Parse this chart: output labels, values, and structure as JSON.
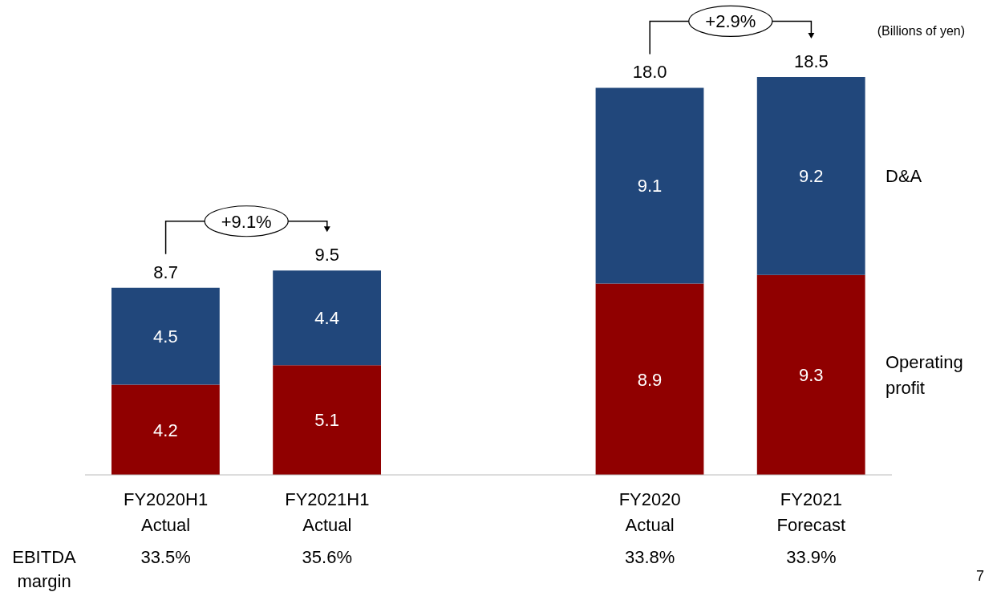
{
  "chart_data": {
    "type": "bar",
    "stacked": true,
    "data_labels": true,
    "categories": [
      "FY2020H1\nActual",
      "FY2021H1\nActual",
      null,
      "FY2020\nActual",
      "FY2021\nForecast"
    ],
    "series": [
      {
        "name": "Operating profit",
        "color": "#900000",
        "values": [
          4.2,
          5.1,
          null,
          8.9,
          9.3
        ]
      },
      {
        "name": "D&A",
        "color": "#21477b",
        "values": [
          4.5,
          4.4,
          null,
          9.1,
          9.2
        ]
      }
    ],
    "totals": [
      "8.7",
      "9.5",
      null,
      "18.0",
      "18.5"
    ],
    "annotations": [
      "(Billions of yen)",
      "+9.1%",
      "+2.9%",
      "EBITDA\nmargin",
      "33.5%",
      "35.6%",
      "33.8%",
      "33.9%",
      "7"
    ]
  }
}
